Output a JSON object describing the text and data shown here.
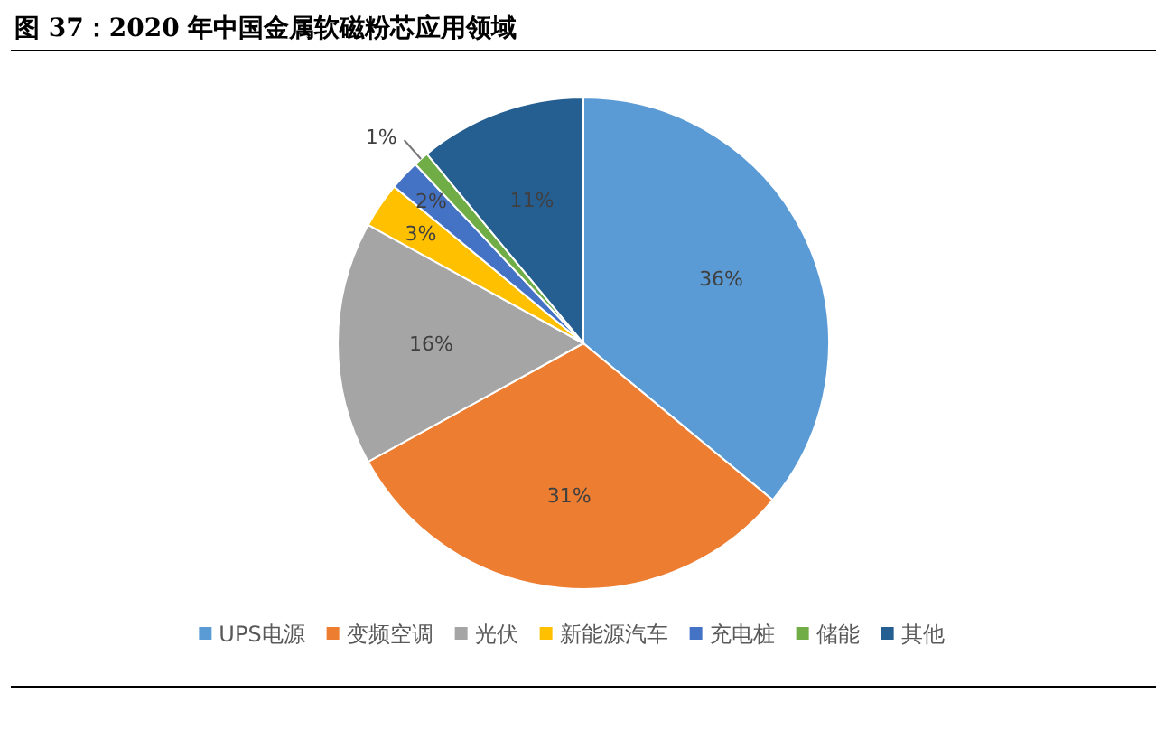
{
  "chart_data": {
    "type": "pie",
    "title": "图 37：2020 年中国金属软磁粉芯应用领域",
    "categories": [
      "UPS电源",
      "变频空调",
      "光伏",
      "新能源汽车",
      "充电桩",
      "储能",
      "其他"
    ],
    "values": [
      36,
      31,
      16,
      3,
      2,
      1,
      11
    ],
    "colors": [
      "#5b9bd5",
      "#ed7d31",
      "#a5a5a5",
      "#ffc000",
      "#4472c4",
      "#70ad47",
      "#255e91"
    ],
    "value_labels": [
      "36%",
      "31%",
      "16%",
      "3%",
      "2%",
      "1%",
      "11%"
    ],
    "legend": "bottom"
  }
}
